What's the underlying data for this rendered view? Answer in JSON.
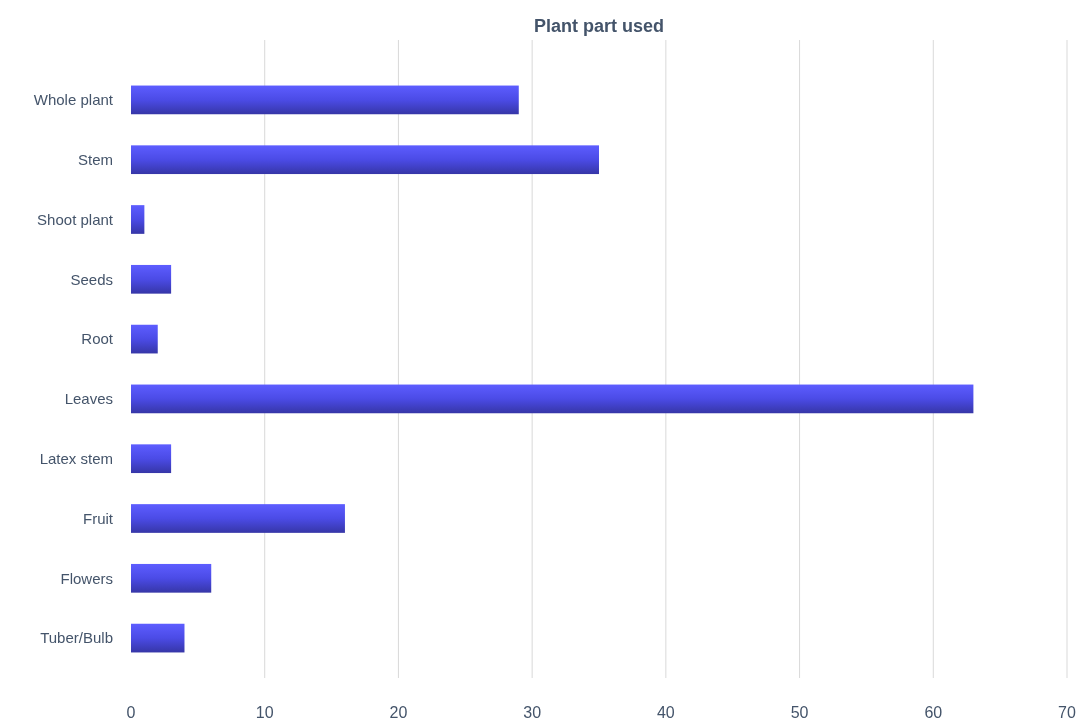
{
  "chart_data": {
    "type": "bar",
    "orientation": "horizontal",
    "title": "Plant part used",
    "categories": [
      "Whole plant",
      "Stem",
      "Shoot plant",
      "Seeds",
      "Root",
      "Leaves",
      "Latex stem",
      "Fruit",
      "Flowers",
      "Tuber/Bulb"
    ],
    "values": [
      29,
      35,
      1,
      3,
      2,
      63,
      3,
      16,
      6,
      4
    ],
    "color": "#4b4be6",
    "xlim": [
      0,
      70
    ],
    "xticks": [
      0,
      10,
      20,
      30,
      40,
      50,
      60,
      70
    ],
    "grid": "x"
  }
}
